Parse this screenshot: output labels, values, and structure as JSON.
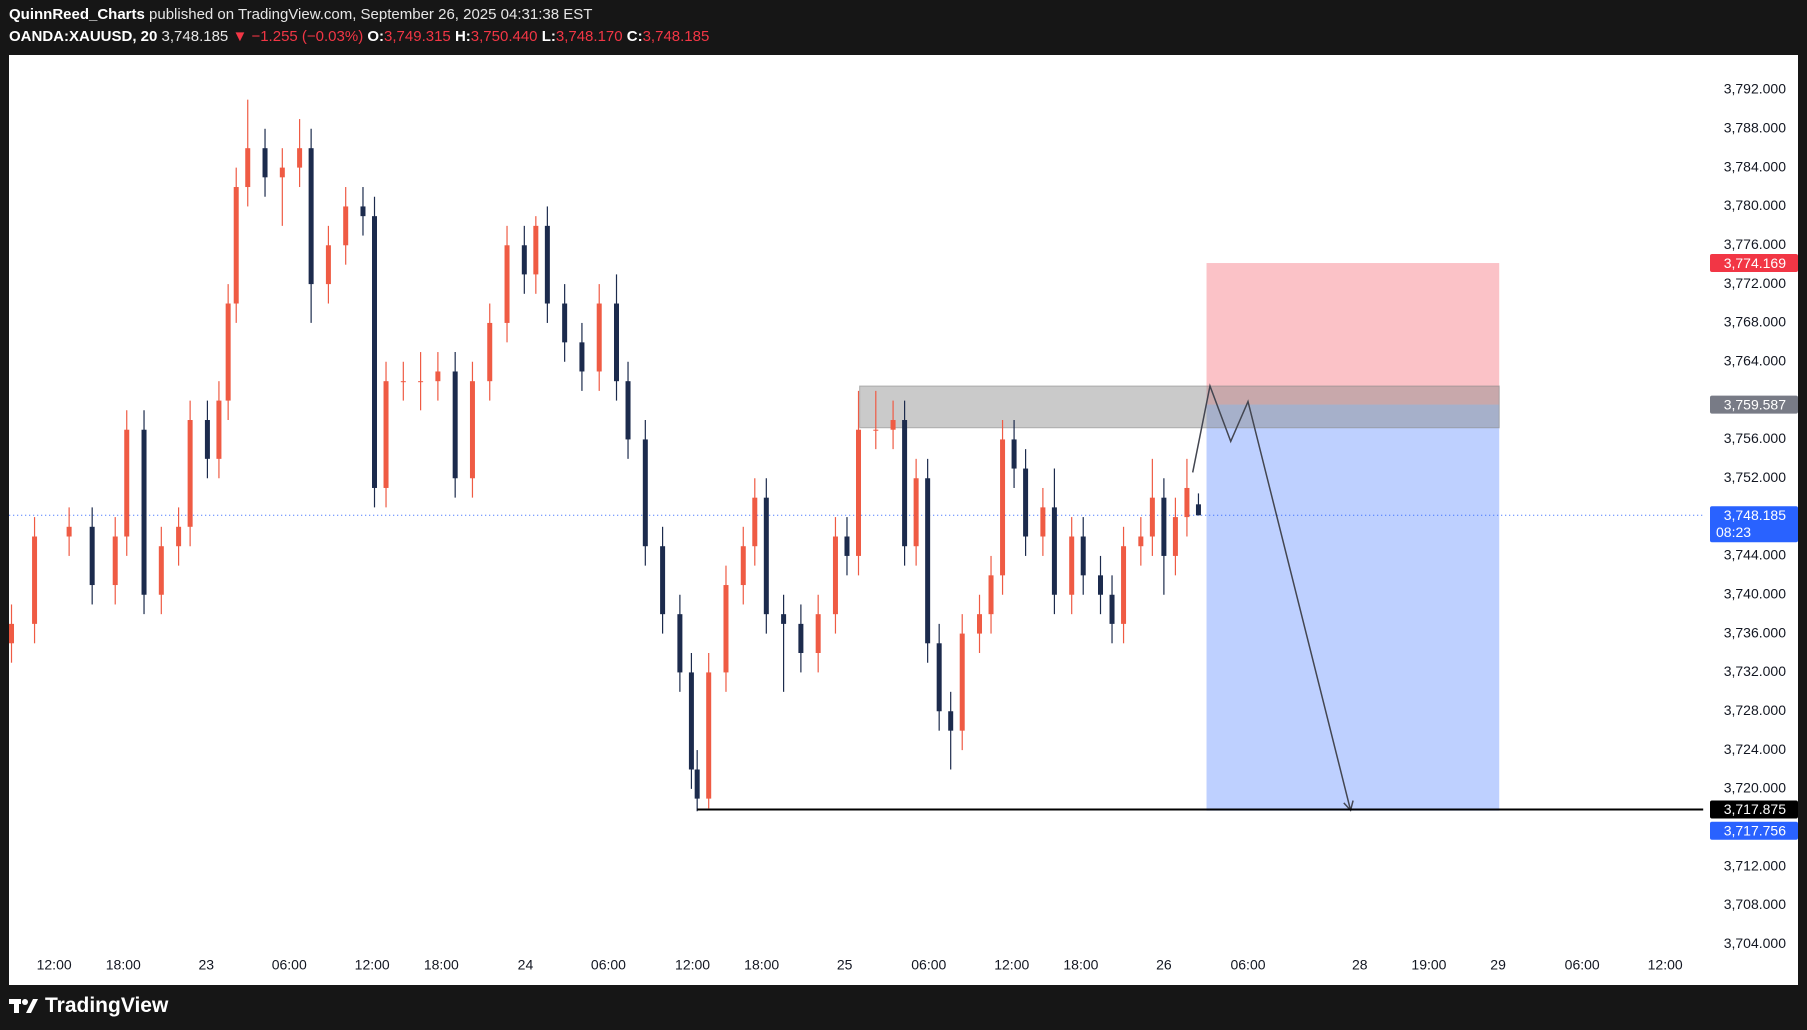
{
  "header": {
    "author": "QuinnReed_Charts",
    "published": "published on TradingView.com, September 26, 2025 04:31:38 EST",
    "symbol": "OANDA:XAUUSD, 20",
    "last": "3,748.185",
    "change": "▼ −1.255 (−0.03%)",
    "o_label": "O:",
    "o": "3,749.315",
    "h_label": "H:",
    "h": "3,750.440",
    "l_label": "L:",
    "l": "3,748.170",
    "c_label": "C:",
    "c": "3,748.185"
  },
  "footer": {
    "brand": "TradingView"
  },
  "chart_data": {
    "type": "candlestick",
    "up_color": "#ef5b44",
    "down_color": "#1c2b4d",
    "grid": false,
    "xlim": [
      0,
      147
    ],
    "ylim": [
      3703.2,
      3795.6
    ],
    "xticks": [
      {
        "value": 3.9,
        "label": "12:00"
      },
      {
        "value": 9.9,
        "label": "18:00"
      },
      {
        "value": 17.1,
        "label": "23"
      },
      {
        "value": 24.3,
        "label": "06:00"
      },
      {
        "value": 31.5,
        "label": "12:00"
      },
      {
        "value": 37.5,
        "label": "18:00"
      },
      {
        "value": 44.8,
        "label": "24"
      },
      {
        "value": 52,
        "label": "06:00"
      },
      {
        "value": 59.3,
        "label": "12:00"
      },
      {
        "value": 65.3,
        "label": "18:00"
      },
      {
        "value": 72.5,
        "label": "25"
      },
      {
        "value": 79.8,
        "label": "06:00"
      },
      {
        "value": 87,
        "label": "12:00"
      },
      {
        "value": 93,
        "label": "18:00"
      },
      {
        "value": 100.2,
        "label": "26"
      },
      {
        "value": 107.5,
        "label": "06:00"
      },
      {
        "value": 117.2,
        "label": "28"
      },
      {
        "value": 123.2,
        "label": "19:00"
      },
      {
        "value": 129.2,
        "label": "29"
      },
      {
        "value": 136.5,
        "label": "06:00"
      },
      {
        "value": 143.7,
        "label": "12:00"
      }
    ],
    "yticks": [
      {
        "value": 3704,
        "label": "3,704.000"
      },
      {
        "value": 3708,
        "label": "3,708.000"
      },
      {
        "value": 3712,
        "label": "3,712.000"
      },
      {
        "value": 3720,
        "label": "3,720.000"
      },
      {
        "value": 3724,
        "label": "3,724.000"
      },
      {
        "value": 3728,
        "label": "3,728.000"
      },
      {
        "value": 3732,
        "label": "3,732.000"
      },
      {
        "value": 3736,
        "label": "3,736.000"
      },
      {
        "value": 3740,
        "label": "3,740.000"
      },
      {
        "value": 3744,
        "label": "3,744.000"
      },
      {
        "value": 3752,
        "label": "3,752.000"
      },
      {
        "value": 3756,
        "label": "3,756.000"
      },
      {
        "value": 3764,
        "label": "3,764.000"
      },
      {
        "value": 3768,
        "label": "3,768.000"
      },
      {
        "value": 3772,
        "label": "3,772.000"
      },
      {
        "value": 3776,
        "label": "3,776.000"
      },
      {
        "value": 3780,
        "label": "3,780.000"
      },
      {
        "value": 3784,
        "label": "3,784.000"
      },
      {
        "value": 3788,
        "label": "3,788.000"
      },
      {
        "value": 3792,
        "label": "3,792.000"
      }
    ],
    "x": [
      0.2,
      2.2,
      5.2,
      7.2,
      9.2,
      10.2,
      11.7,
      13.2,
      14.7,
      15.7,
      17.2,
      18.2,
      19.0,
      19.7,
      20.7,
      22.2,
      23.7,
      25.2,
      26.2,
      27.7,
      29.2,
      30.7,
      31.7,
      32.7,
      34.2,
      35.7,
      37.2,
      38.7,
      40.2,
      41.7,
      43.2,
      44.7,
      45.7,
      46.7,
      48.2,
      49.7,
      51.2,
      52.7,
      53.7,
      55.2,
      56.7,
      58.2,
      59.2,
      59.7,
      60.7,
      62.2,
      63.7,
      64.7,
      65.7,
      67.2,
      68.7,
      70.2,
      71.7,
      72.7,
      73.7,
      75.2,
      76.7,
      77.7,
      78.7,
      79.7,
      80.7,
      81.7,
      82.7,
      84.2,
      85.2,
      86.2,
      87.2,
      88.2,
      89.7,
      90.7,
      92.2,
      93.2,
      94.7,
      95.7,
      96.7,
      98.2,
      99.2,
      100.2,
      101.2,
      102.2,
      103.2
    ],
    "open": [
      3735,
      3737,
      3746,
      3747,
      3741,
      3746,
      3757,
      3740,
      3745,
      3747,
      3758,
      3754,
      3760,
      3770,
      3782,
      3786,
      3783,
      3784,
      3786,
      3772,
      3776,
      3780,
      3779,
      3751,
      3762,
      3762,
      3762,
      3763,
      3752,
      3762,
      3768,
      3776,
      3773,
      3778,
      3770,
      3766,
      3763,
      3770,
      3762,
      3756,
      3745,
      3738,
      3732,
      3722,
      3719,
      3732,
      3741,
      3745,
      3750,
      3738,
      3737,
      3734,
      3738,
      3746,
      3744,
      3757,
      3757,
      3758,
      3745,
      3752,
      3735,
      3728,
      3726,
      3736,
      3738,
      3742,
      3756,
      3753,
      3746,
      3749,
      3740,
      3746,
      3742,
      3740,
      3737,
      3745,
      3746,
      3750,
      3744,
      3748,
      3749.315
    ],
    "high": [
      3739,
      3748,
      3749,
      3749,
      3748,
      3759,
      3759,
      3747,
      3749,
      3760,
      3760,
      3762,
      3772,
      3784,
      3791,
      3788,
      3786,
      3789,
      3788,
      3778,
      3782,
      3782,
      3781,
      3764,
      3764,
      3765,
      3765,
      3765,
      3764,
      3770,
      3778,
      3778,
      3779,
      3780,
      3772,
      3768,
      3772,
      3773,
      3764,
      3758,
      3747,
      3740,
      3734,
      3724,
      3734,
      3743,
      3747,
      3752,
      3752,
      3740,
      3739,
      3740,
      3748,
      3748,
      3761,
      3761,
      3760,
      3760,
      3754,
      3754,
      3737,
      3730,
      3738,
      3740,
      3744,
      3758,
      3758,
      3755,
      3751,
      3753,
      3748,
      3748,
      3744,
      3742,
      3747,
      3748,
      3754,
      3752,
      3750,
      3754,
      3750.44
    ],
    "low": [
      3733,
      3735,
      3744,
      3739,
      3739,
      3744,
      3738,
      3738,
      3743,
      3745,
      3752,
      3752,
      3758,
      3768,
      3780,
      3781,
      3778,
      3782,
      3768,
      3770,
      3774,
      3777,
      3749,
      3749,
      3760,
      3759,
      3760,
      3750,
      3750,
      3760,
      3766,
      3771,
      3771,
      3768,
      3764,
      3761,
      3761,
      3760,
      3754,
      3743,
      3736,
      3730,
      3720,
      3717.7,
      3718,
      3730,
      3739,
      3743,
      3736,
      3730,
      3732,
      3732,
      3736,
      3742,
      3742,
      3755,
      3755,
      3743,
      3743,
      3733,
      3726,
      3722,
      3724,
      3734,
      3736,
      3740,
      3751,
      3744,
      3744,
      3738,
      3738,
      3740,
      3738,
      3735,
      3735,
      3743,
      3744,
      3740,
      3742,
      3746,
      3748.17
    ],
    "close": [
      3737,
      3746,
      3747,
      3741,
      3746,
      3757,
      3740,
      3745,
      3747,
      3758,
      3754,
      3760,
      3770,
      3782,
      3786,
      3783,
      3784,
      3786,
      3772,
      3776,
      3780,
      3779,
      3751,
      3762,
      3762,
      3762,
      3763,
      3752,
      3762,
      3768,
      3776,
      3773,
      3778,
      3770,
      3766,
      3763,
      3770,
      3762,
      3756,
      3745,
      3738,
      3732,
      3722,
      3719,
      3732,
      3741,
      3745,
      3750,
      3738,
      3737,
      3734,
      3738,
      3746,
      3744,
      3757,
      3757,
      3758,
      3745,
      3752,
      3735,
      3728,
      3726,
      3736,
      3738,
      3742,
      3756,
      3753,
      3746,
      3749,
      3740,
      3746,
      3742,
      3740,
      3737,
      3745,
      3746,
      3750,
      3744,
      3748,
      3751,
      3748.185
    ],
    "last_price": {
      "value": 3748.185,
      "label": "3,748.185",
      "countdown": "08:23",
      "color": "#2962ff"
    },
    "drawings": {
      "zone": {
        "top": 3761.5,
        "bottom": 3757.2,
        "x": [
          73.8,
          129.3
        ],
        "color": "#8a8a8a"
      },
      "position": {
        "x": [
          103.9,
          129.3
        ],
        "stop": {
          "value": 3774.169,
          "label": "3,774.169",
          "color": "#f23645"
        },
        "entry": {
          "value": 3759.587,
          "label": "3,759.587",
          "color": "#787b86"
        },
        "target": {
          "value": 3717.756,
          "label": "3,717.756",
          "color": "#2962ff"
        }
      },
      "support": {
        "value": 3717.875,
        "label": "3,717.875",
        "x_start": 59.7,
        "color": "#000000"
      },
      "arrow": {
        "x": [
          102.7,
          104.2,
          106.0,
          107.5,
          116.4
        ],
        "y": [
          3752.6,
          3761.5,
          3755.8,
          3759.9,
          3717.8
        ],
        "color": "#434651"
      }
    }
  }
}
